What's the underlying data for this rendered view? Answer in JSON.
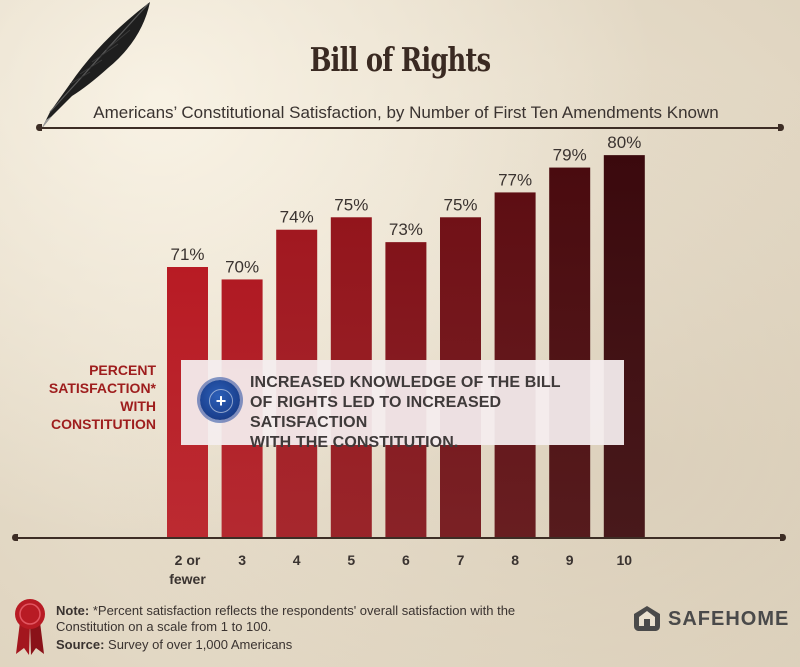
{
  "header": {
    "title": "Bill of Rights",
    "subtitle": "Americans’ Constitutional Satisfaction, by Number of First Ten Amendments Known"
  },
  "y_axis_lines": [
    "PERCENT",
    "SATISFACTION*",
    "WITH",
    "CONSTITUTION"
  ],
  "chart_data": {
    "type": "bar",
    "title": "Bill of Rights",
    "subtitle": "Americans’ Constitutional Satisfaction, by Number of First Ten Amendments Known",
    "ylabel": "PERCENT SATISFACTION* WITH CONSTITUTION",
    "xlabel": "",
    "categories": [
      "2 or fewer",
      "3",
      "4",
      "5",
      "6",
      "7",
      "8",
      "9",
      "10"
    ],
    "category_lines": [
      [
        "2 or",
        "fewer"
      ],
      [
        "3"
      ],
      [
        "4"
      ],
      [
        "5"
      ],
      [
        "6"
      ],
      [
        "7"
      ],
      [
        "8"
      ],
      [
        "9"
      ],
      [
        "10"
      ]
    ],
    "values": [
      71,
      70,
      74,
      75,
      73,
      75,
      77,
      79,
      80
    ],
    "data_labels": [
      "71%",
      "70%",
      "74%",
      "75%",
      "73%",
      "75%",
      "77%",
      "79%",
      "80%"
    ],
    "grid": false,
    "bar_colors": [
      "#b81b24",
      "#b01a23",
      "#a11820",
      "#93151c",
      "#82131a",
      "#711117",
      "#5e0e13",
      "#4a0b0f",
      "#3b090d"
    ]
  },
  "callout": {
    "icon": "plus-seal-icon",
    "lines": [
      "INCREASED KNOWLEDGE OF THE BILL",
      "OF RIGHTS LED TO INCREASED SATISFACTION",
      "WITH THE CONSTITUTION."
    ]
  },
  "footer": {
    "note_label": "Note:",
    "note_text": "*Percent satisfaction reflects the respondents' overall satisfaction with the Constitution on a scale from 1 to 100.",
    "source_label": "Source:",
    "source_text": "Survey of over 1,000 Americans",
    "brand": "SAFEHOME"
  },
  "colors": {
    "background": "#e9e0cf",
    "title": "#3a2a22",
    "accent_red": "#9e1d1d",
    "badge_blue": "#1a3f8c"
  }
}
